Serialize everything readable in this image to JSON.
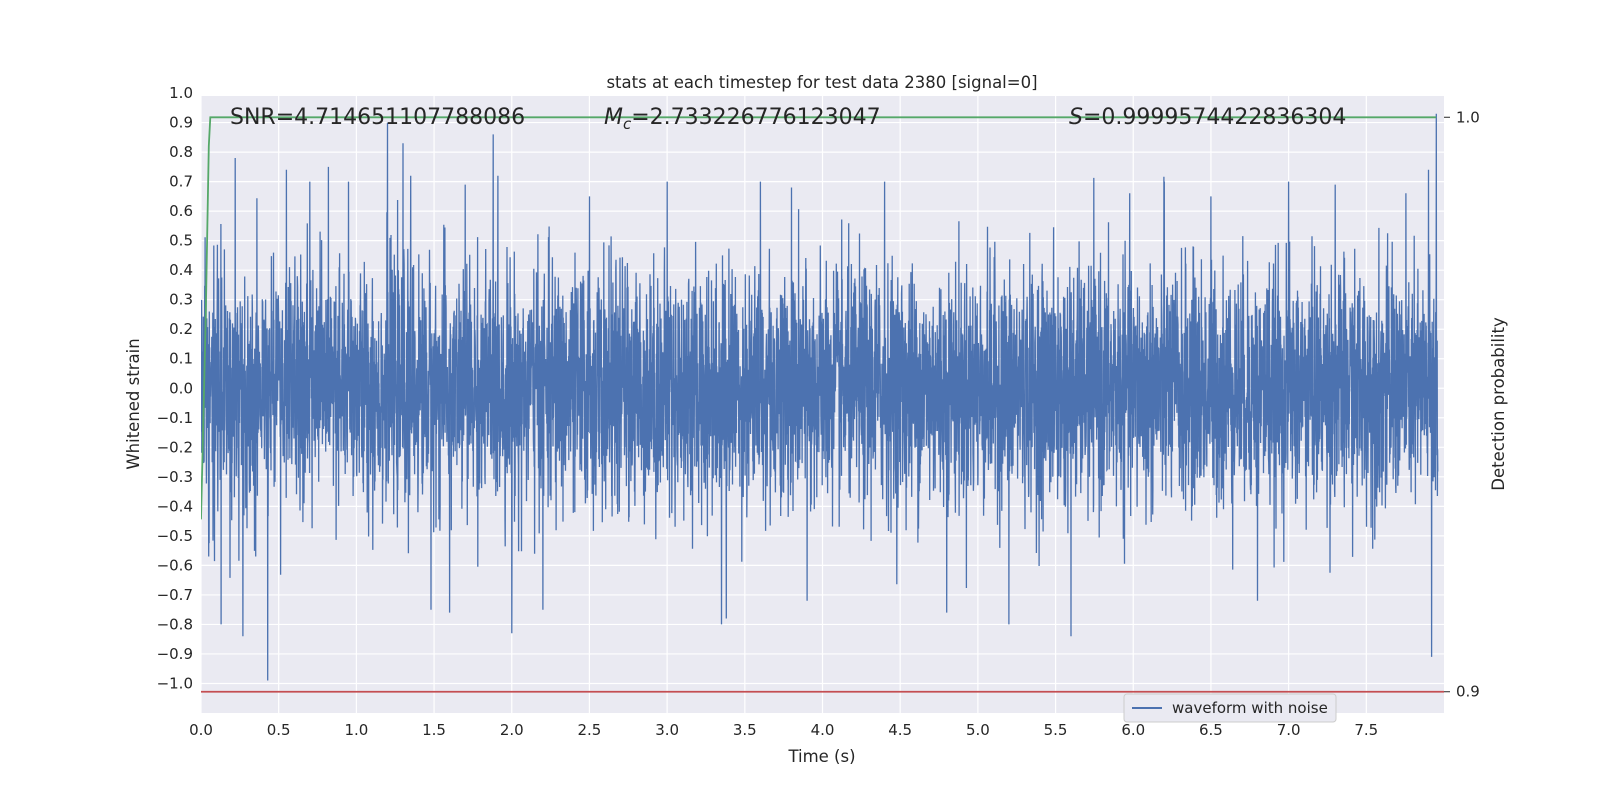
{
  "chart_data": {
    "type": "line",
    "title": "stats at each timestep for test data 2380 [signal=0]",
    "xlabel": "Time (s)",
    "ylabel": "Whitened strain",
    "y2label": "Detection probability",
    "xlim": [
      0.0,
      8.0
    ],
    "ylim": [
      -1.1,
      0.99
    ],
    "y2lim": [
      0.8963,
      1.0037
    ],
    "grid": true,
    "x_ticks": [
      "0.0",
      "0.5",
      "1.0",
      "1.5",
      "2.0",
      "2.5",
      "3.0",
      "3.5",
      "4.0",
      "4.5",
      "5.0",
      "5.5",
      "6.0",
      "6.5",
      "7.0",
      "7.5"
    ],
    "y_ticks": [
      "1.0",
      "0.9",
      "0.8",
      "0.7",
      "0.6",
      "0.5",
      "0.4",
      "0.3",
      "0.2",
      "0.1",
      "0.0",
      "−0.1",
      "−0.2",
      "−0.3",
      "−0.4",
      "−0.5",
      "−0.6",
      "−0.7",
      "−0.8",
      "−0.9",
      "−1.0"
    ],
    "y2_ticks": [
      "1.0",
      "0.9"
    ],
    "annotations": {
      "snr": "SNR=4.714651107788086",
      "mc": "=2.733226776123047",
      "mc_symbol": "M",
      "mc_sub": "c",
      "s": "=0.9999574422836304",
      "s_symbol": "S"
    },
    "legend": {
      "entries": [
        "waveform with noise"
      ],
      "placement": "lower-right"
    },
    "colors": {
      "waveform": "#4c72b0",
      "probability": "#55a868",
      "threshold": "#c44e52",
      "axes_bg": "#eaeaf2",
      "grid": "#ffffff"
    },
    "series": [
      {
        "name": "waveform with noise",
        "axis": "left",
        "description": "dense noise-like whitened strain sampled at 2048 Hz; peaks sampled below",
        "noise_sigma": 0.2,
        "sample_rate_hz": 2048,
        "peaks": [
          [
            0.05,
            0.8
          ],
          [
            0.05,
            -0.57
          ],
          [
            0.13,
            -0.8
          ],
          [
            0.22,
            0.78
          ],
          [
            0.27,
            -0.84
          ],
          [
            0.43,
            -0.99
          ],
          [
            0.55,
            0.74
          ],
          [
            0.7,
            0.7
          ],
          [
            0.82,
            0.75
          ],
          [
            0.95,
            0.7
          ],
          [
            1.2,
            0.9
          ],
          [
            1.3,
            0.83
          ],
          [
            1.35,
            0.72
          ],
          [
            1.48,
            -0.75
          ],
          [
            1.6,
            -0.76
          ],
          [
            1.7,
            0.69
          ],
          [
            1.88,
            0.86
          ],
          [
            2.0,
            -0.83
          ],
          [
            2.2,
            -0.75
          ],
          [
            2.5,
            0.65
          ],
          [
            3.0,
            0.7
          ],
          [
            3.35,
            -0.8
          ],
          [
            3.38,
            -0.78
          ],
          [
            3.6,
            0.7
          ],
          [
            3.8,
            0.68
          ],
          [
            3.9,
            -0.72
          ],
          [
            4.4,
            0.7
          ],
          [
            4.8,
            -0.76
          ],
          [
            5.2,
            -0.8
          ],
          [
            5.6,
            -0.84
          ],
          [
            6.2,
            0.7
          ],
          [
            6.5,
            0.65
          ],
          [
            6.8,
            -0.72
          ],
          [
            7.0,
            0.7
          ],
          [
            7.3,
            0.69
          ],
          [
            7.9,
            0.74
          ],
          [
            7.92,
            -0.91
          ],
          [
            7.95,
            0.93
          ]
        ]
      },
      {
        "name": "",
        "axis": "right",
        "x": [
          0.0,
          0.03,
          0.05,
          0.06,
          7.95
        ],
        "y": [
          0.93,
          0.965,
          0.995,
          1.0,
          1.0
        ]
      },
      {
        "name": "",
        "axis": "right",
        "x": [
          0.0,
          8.0
        ],
        "y": [
          0.9,
          0.9
        ]
      }
    ]
  }
}
